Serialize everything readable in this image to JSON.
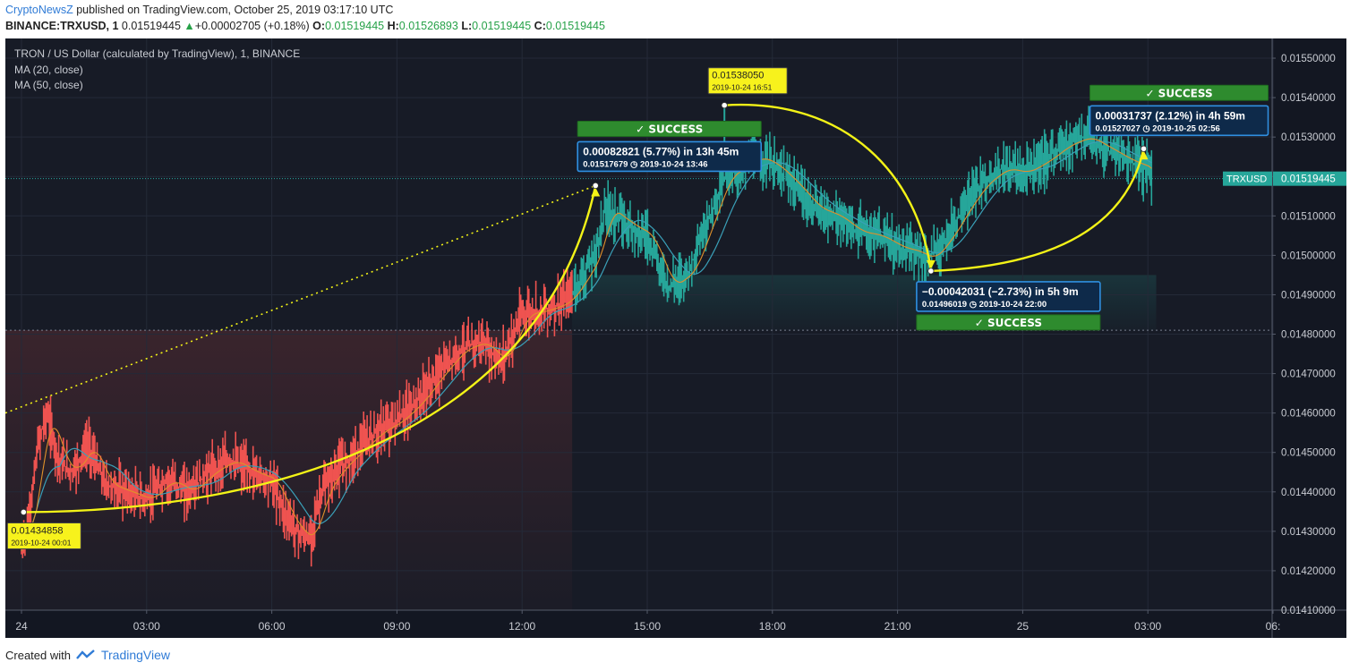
{
  "header": {
    "author": "CryptoNewsZ",
    "published_text": "published on TradingView.com, October 25, 2019 03:17:10 UTC",
    "symbol": "BINANCE:TRXUSD, 1",
    "last": "0.01519445",
    "change_arrow": "▲",
    "change": "+0.00002705 (+0.18%)",
    "o_label": "O:",
    "o": "0.01519445",
    "h_label": "H:",
    "h": "0.01526893",
    "l_label": "L:",
    "l": "0.01519445",
    "c_label": "C:",
    "c": "0.01519445"
  },
  "chart_data": {
    "type": "line",
    "title": "TRON / US Dollar (calculated by TradingView), 1, BINANCE",
    "indicators": [
      "MA (20, close)",
      "MA (50, close)"
    ],
    "ylim": [
      0.0141,
      0.01555
    ],
    "yticks": [
      "0.01550000",
      "0.01540000",
      "0.01530000",
      "0.01520000",
      "0.01510000",
      "0.01500000",
      "0.01490000",
      "0.01480000",
      "0.01470000",
      "0.01460000",
      "0.01450000",
      "0.01440000",
      "0.01430000",
      "0.01420000",
      "0.01410000"
    ],
    "xticks": [
      "24",
      "03:00",
      "06:00",
      "09:00",
      "12:00",
      "15:00",
      "18:00",
      "21:00",
      "25",
      "03:00",
      "06:"
    ],
    "xticks_hours": [
      0,
      3,
      6,
      9,
      12,
      15,
      18,
      21,
      24,
      27,
      30
    ],
    "price_label": "TRXUSD",
    "price_value": "0.01519445",
    "current_price": 0.01519445,
    "dotted_level": 0.01481,
    "colors": {
      "up": "#26a69a",
      "down": "#ef5350",
      "ma20": "#e0902a",
      "ma50": "#3aa0b8",
      "annot": "#f3f317",
      "bg": "#131722"
    },
    "series": [
      {
        "name": "TRXUSD",
        "x": [
          0,
          0.2,
          0.4,
          0.6,
          0.9,
          1.2,
          1.6,
          2.0,
          2.5,
          3.0,
          3.5,
          4.0,
          4.5,
          5.0,
          5.5,
          6.0,
          6.3,
          6.6,
          6.9,
          7.2,
          7.6,
          8.0,
          8.5,
          9.0,
          9.5,
          10.0,
          10.5,
          11.0,
          11.5,
          12.0,
          12.5,
          13.0,
          13.3,
          13.75,
          14.0,
          14.5,
          15.0,
          15.5,
          16.0,
          16.5,
          16.85,
          17.2,
          17.6,
          18.0,
          18.5,
          19.0,
          19.5,
          20.0,
          20.5,
          21.0,
          21.4,
          21.75,
          22.2,
          22.6,
          23.0,
          23.5,
          24.0,
          24.5,
          25.0,
          25.5,
          26.0,
          26.5,
          27.0,
          27.1
        ],
        "y": [
          0.01425,
          0.01435,
          0.01452,
          0.0146,
          0.01448,
          0.01445,
          0.01452,
          0.01442,
          0.0144,
          0.01438,
          0.01443,
          0.0144,
          0.01445,
          0.01448,
          0.01445,
          0.01443,
          0.01435,
          0.0143,
          0.01428,
          0.0144,
          0.01446,
          0.0145,
          0.01455,
          0.01458,
          0.01463,
          0.0147,
          0.01476,
          0.01478,
          0.01473,
          0.01485,
          0.01486,
          0.01488,
          0.01492,
          0.015,
          0.01512,
          0.01508,
          0.01505,
          0.01492,
          0.01496,
          0.0151,
          0.0152,
          0.01522,
          0.01525,
          0.01523,
          0.01518,
          0.01512,
          0.0151,
          0.01506,
          0.01505,
          0.01502,
          0.01501,
          0.01499,
          0.01505,
          0.01512,
          0.01518,
          0.01522,
          0.01521,
          0.01524,
          0.01528,
          0.0153,
          0.01527,
          0.01524,
          0.01522,
          0.01519
        ]
      }
    ],
    "annotations": {
      "low": {
        "value": "0.01434858",
        "time": "2019-10-24 00:01"
      },
      "high": {
        "value": "0.01538050",
        "time": "2019-10-24 16:51"
      },
      "measures": [
        {
          "status": "SUCCESS",
          "title": "0.00082821 (5.77%) in 13h 45m",
          "price": "0.01517679",
          "time": "2019-10-24 13:46"
        },
        {
          "status": "SUCCESS",
          "title": "−0.00042031 (−2.73%) in 5h 9m",
          "price": "0.01496019",
          "time": "2019-10-24 22:00"
        },
        {
          "status": "SUCCESS",
          "title": "0.00031737 (2.12%) in 4h 59m",
          "price": "0.01527027",
          "time": "2019-10-25 02:56"
        }
      ]
    }
  },
  "footer": {
    "created_with": "Created with",
    "brand": "TradingView"
  }
}
